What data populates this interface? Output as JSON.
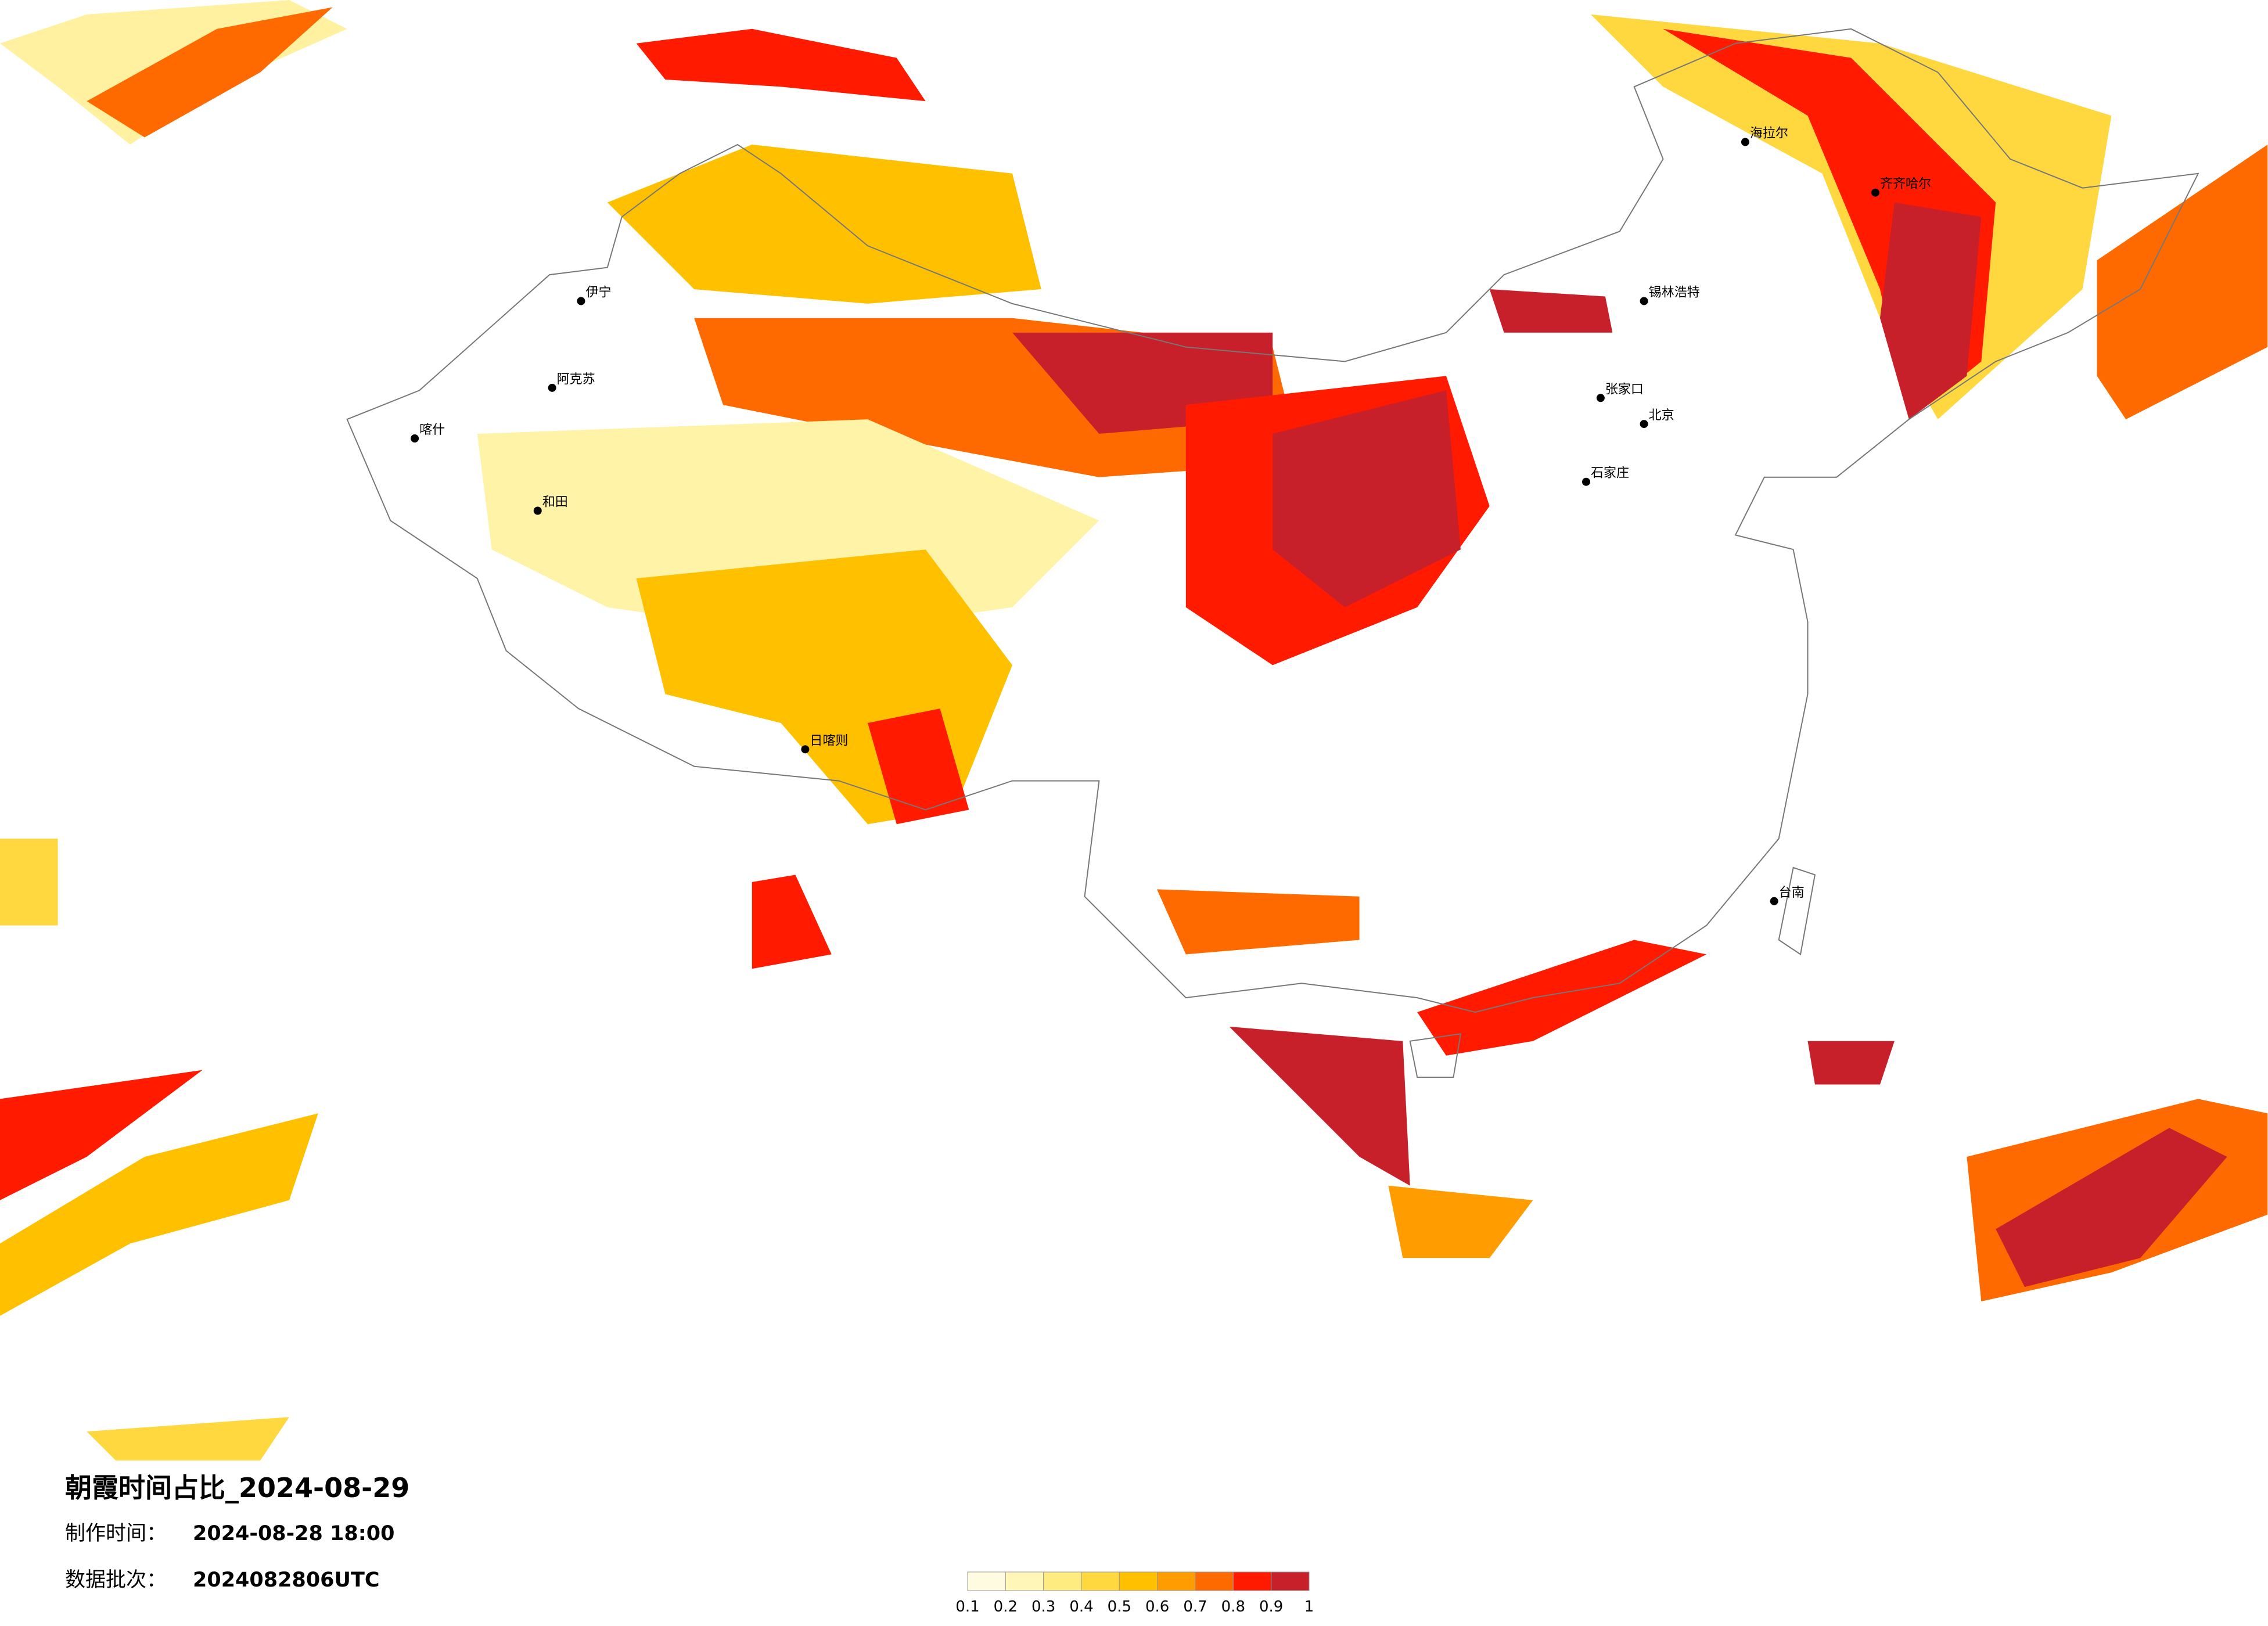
{
  "title": "朝霞时间占比_2024-08-29",
  "made_time": {
    "label": "制作时间：",
    "value": "2024-08-28 18:00"
  },
  "data_batch": {
    "label": "数据批次：",
    "value": "2024082806UTC"
  },
  "legend": {
    "ticks": [
      0.1,
      0.2,
      0.3,
      0.4,
      0.5,
      0.6,
      0.7,
      0.8,
      0.9,
      1
    ],
    "colors": [
      "#fffbe0",
      "#fff6b8",
      "#ffec80",
      "#ffd840",
      "#ffc000",
      "#ff9c00",
      "#ff6a00",
      "#ff1a00",
      "#c8202a"
    ]
  },
  "cities": [
    "海拉尔",
    "锡林浩特",
    "阿克苏",
    "和田",
    "北京",
    "张家口",
    "石家庄",
    "日喀则",
    "伊宁",
    "喀什",
    "齐齐哈尔",
    "台南"
  ]
}
